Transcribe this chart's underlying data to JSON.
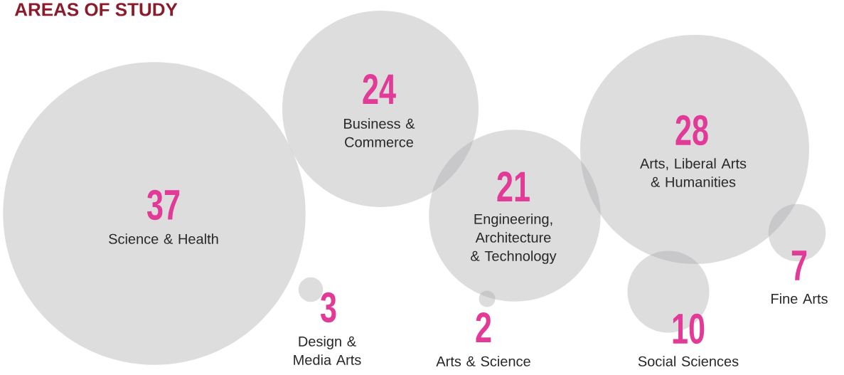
{
  "chart_data": {
    "type": "other",
    "title": "AREAS OF STUDY",
    "categories": [
      "Science & Health",
      "Design & Media Arts",
      "Business & Commerce",
      "Engineering, Architecture & Technology",
      "Arts & Science",
      "Arts, Liberal Arts & Humanities",
      "Social Sciences",
      "Fine Arts"
    ],
    "values": [
      37,
      3,
      24,
      21,
      2,
      28,
      10,
      7
    ],
    "color": "#a9aaad",
    "data_labels": true
  }
}
